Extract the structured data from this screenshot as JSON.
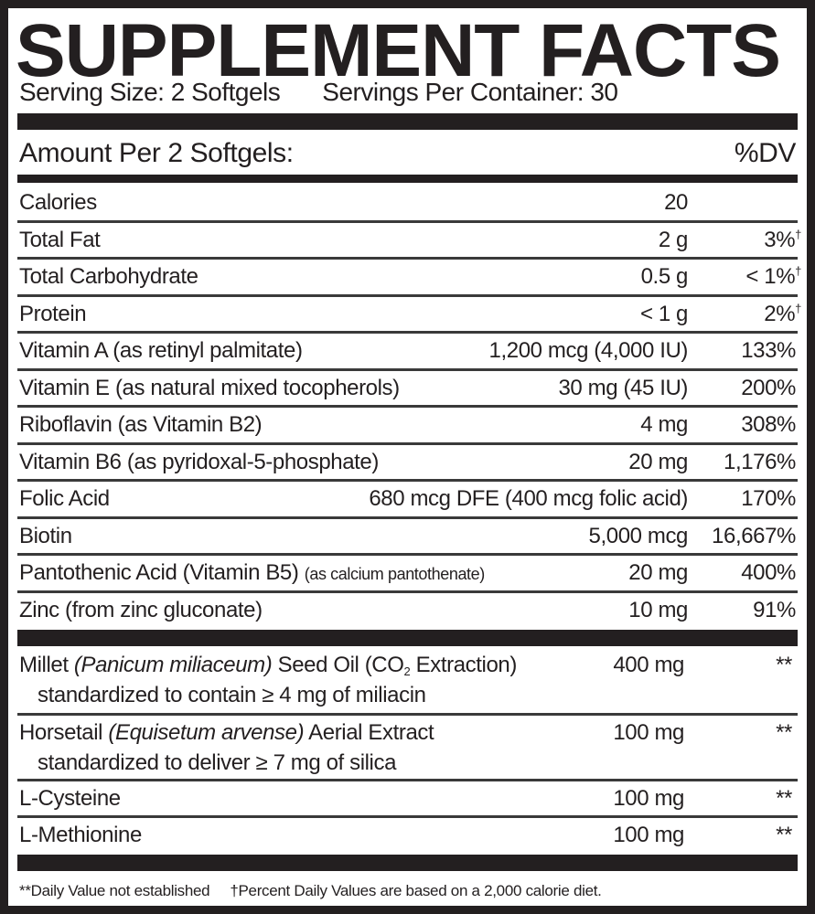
{
  "title": "SUPPLEMENT FACTS",
  "serving_size": "Serving Size: 2 Softgels",
  "servings_per_container": "Servings Per Container: 30",
  "amount_header": "Amount Per 2 Softgels:",
  "dv_header": "%DV",
  "nutrients": [
    {
      "name": "Calories",
      "amount": "20",
      "dv": ""
    },
    {
      "name": "Total Fat",
      "amount": "2 g",
      "dv": "3%",
      "mark": "†"
    },
    {
      "name": "Total Carbohydrate",
      "amount": "0.5 g",
      "dv": "< 1%",
      "mark": "†"
    },
    {
      "name": "Protein",
      "amount": "< 1 g",
      "dv": "2%",
      "mark": "†"
    },
    {
      "name": "Vitamin A (as retinyl palmitate)",
      "amount": "1,200 mcg (4,000 IU)",
      "dv": "133%"
    },
    {
      "name": "Vitamin E (as natural mixed tocopherols)",
      "amount": "30 mg (45 IU)",
      "dv": "200%"
    },
    {
      "name": "Riboflavin (as Vitamin B2)",
      "amount": "4 mg",
      "dv": "308%"
    },
    {
      "name": "Vitamin B6 (as pyridoxal-5-phosphate)",
      "amount": "20 mg",
      "dv": "1,176%"
    },
    {
      "name": "Folic Acid",
      "amount": "680 mcg DFE (400 mcg folic acid)",
      "dv": "170%"
    },
    {
      "name": "Biotin",
      "amount": "5,000 mcg",
      "dv": "16,667%"
    },
    {
      "name": "Pantothenic Acid (Vitamin B5)",
      "name_small": "(as calcium pantothenate)",
      "amount": "20 mg",
      "dv": "400%"
    },
    {
      "name": "Zinc (from zinc gluconate)",
      "amount": "10 mg",
      "dv": "91%"
    }
  ],
  "other": [
    {
      "name_a": "Millet ",
      "name_italic": "(Panicum miliaceum)",
      "name_b": " Seed Oil (CO",
      "subscript": "2",
      "name_c": " Extraction)",
      "detail": "standardized to contain ≥ 4 mg of miliacin",
      "amount": "400 mg",
      "dv": "**"
    },
    {
      "name_a": "Horsetail ",
      "name_italic": "(Equisetum arvense)",
      "name_b": " Aerial Extract",
      "detail": "standardized to deliver ≥ 7 mg of silica",
      "amount": "100 mg",
      "dv": "**"
    },
    {
      "name": "L-Cysteine",
      "amount": "100 mg",
      "dv": "**"
    },
    {
      "name": "L-Methionine",
      "amount": "100 mg",
      "dv": "**"
    }
  ],
  "footnotes": [
    "**Daily Value not established",
    "†Percent Daily Values are based on a 2,000 calorie diet."
  ]
}
